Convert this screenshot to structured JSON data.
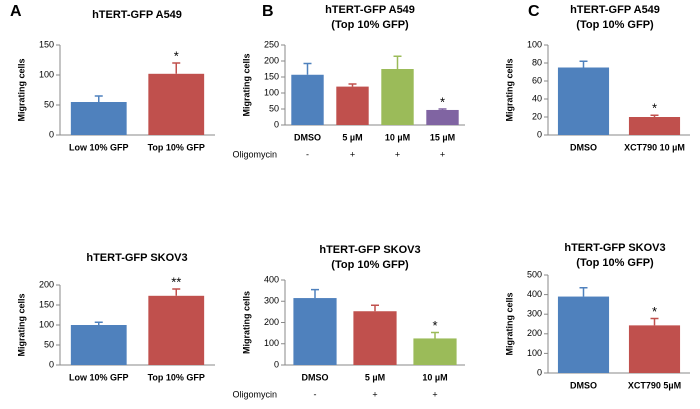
{
  "chart_data": [
    {
      "type": "bar",
      "panel_label": "A",
      "title": "hTERT-GFP A549",
      "y_label": "Migrating cells",
      "categories": [
        "Low 10% GFP",
        "Top 10% GFP"
      ],
      "values": [
        55,
        102
      ],
      "errors": [
        10,
        18
      ],
      "colors": [
        "#4f81bd",
        "#c0504d"
      ],
      "significance": [
        null,
        "*"
      ],
      "ylim": [
        0,
        150
      ],
      "yticks": [
        0,
        50,
        100,
        150
      ]
    },
    {
      "type": "bar",
      "panel_label": "B",
      "title": "hTERT-GFP A549",
      "subtitle": "(Top 10% GFP)",
      "y_label": "Migrating cells",
      "categories": [
        "DMSO",
        "5 µM",
        "10 µM",
        "15 µM"
      ],
      "values": [
        157,
        120,
        175,
        47
      ],
      "errors": [
        35,
        8,
        40,
        3
      ],
      "colors": [
        "#4f81bd",
        "#c0504d",
        "#9bbb59",
        "#8064a2"
      ],
      "significance": [
        null,
        null,
        null,
        "*"
      ],
      "treatment_label": "Oligomycin",
      "treatment": [
        "-",
        "+",
        "+",
        "+"
      ],
      "ylim": [
        0,
        250
      ],
      "yticks": [
        0,
        50,
        100,
        150,
        200,
        250
      ]
    },
    {
      "type": "bar",
      "panel_label": "C",
      "title": "hTERT-GFP A549",
      "subtitle": "(Top 10% GFP)",
      "y_label": "Migrating cells",
      "categories": [
        "DMSO",
        "XCT790 10 µM"
      ],
      "values": [
        75,
        20
      ],
      "errors": [
        7,
        2
      ],
      "colors": [
        "#4f81bd",
        "#c0504d"
      ],
      "significance": [
        null,
        "*"
      ],
      "ylim": [
        0,
        100
      ],
      "yticks": [
        0,
        20,
        40,
        60,
        80,
        100
      ]
    },
    {
      "type": "bar",
      "title": "hTERT-GFP SKOV3",
      "y_label": "Migrating cells",
      "categories": [
        "Low 10% GFP",
        "Top 10% GFP"
      ],
      "values": [
        100,
        173
      ],
      "errors": [
        7,
        17
      ],
      "colors": [
        "#4f81bd",
        "#c0504d"
      ],
      "significance": [
        null,
        "**"
      ],
      "ylim": [
        0,
        200
      ],
      "yticks": [
        0,
        50,
        100,
        150,
        200
      ]
    },
    {
      "type": "bar",
      "title": "hTERT-GFP SKOV3",
      "subtitle": "(Top 10% GFP)",
      "y_label": "Migrating cells",
      "categories": [
        "DMSO",
        "5 µM",
        "10 µM"
      ],
      "values": [
        315,
        253,
        125
      ],
      "errors": [
        40,
        28,
        28
      ],
      "colors": [
        "#4f81bd",
        "#c0504d",
        "#9bbb59"
      ],
      "significance": [
        null,
        null,
        "*"
      ],
      "treatment_label": "Oligomycin",
      "treatment": [
        "-",
        "+",
        "+"
      ],
      "ylim": [
        0,
        400
      ],
      "yticks": [
        0,
        100,
        200,
        300,
        400
      ]
    },
    {
      "type": "bar",
      "title": "hTERT-GFP SKOV3",
      "subtitle": "(Top 10% GFP)",
      "y_label": "Migrating cells",
      "categories": [
        "DMSO",
        "XCT790 5µM"
      ],
      "values": [
        390,
        243
      ],
      "errors": [
        45,
        35
      ],
      "colors": [
        "#4f81bd",
        "#c0504d"
      ],
      "significance": [
        null,
        "*"
      ],
      "ylim": [
        0,
        500
      ],
      "yticks": [
        0,
        100,
        200,
        300,
        400,
        500
      ]
    }
  ]
}
